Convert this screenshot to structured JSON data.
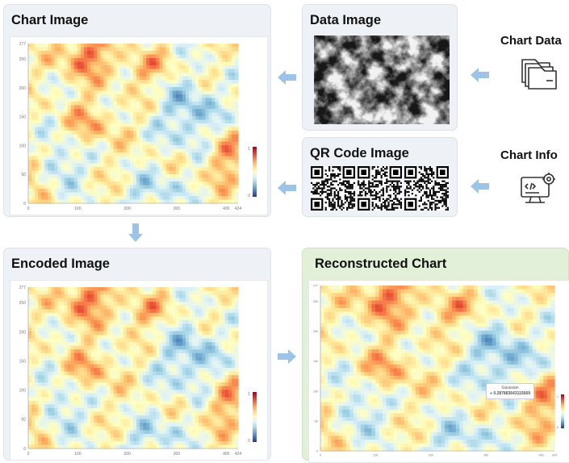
{
  "panels": {
    "chart_image": {
      "title": "Chart Image"
    },
    "data_image": {
      "title": "Data Image"
    },
    "qr_image": {
      "title": "QR Code Image"
    },
    "encoded_image": {
      "title": "Encoded Image"
    },
    "reconstructed": {
      "title": "Reconstructed Chart"
    }
  },
  "side_labels": {
    "chart_data": "Chart Data",
    "chart_info": "Chart Info"
  },
  "icons": {
    "chart_data": "stacked-documents-icon",
    "chart_info": "computer-settings-icon"
  },
  "tooltip": {
    "title": "Gaussian",
    "value": "0.287883643115669"
  },
  "colors": {
    "arrow": "#9dc3e6",
    "green_panel": "#e2efd9",
    "gray_panel": "#eef1f5"
  },
  "chart_data": {
    "type": "heatmap",
    "x_ticks": [
      "0",
      "100",
      "200",
      "300",
      "400",
      "424"
    ],
    "y_ticks": [
      "0",
      "50",
      "100",
      "150",
      "200",
      "250",
      "277"
    ],
    "xlim": [
      0,
      424
    ],
    "ylim": [
      0,
      277
    ],
    "colorbar": {
      "min": "0",
      "max": "1"
    },
    "colormap": "RdYlBu_r"
  }
}
